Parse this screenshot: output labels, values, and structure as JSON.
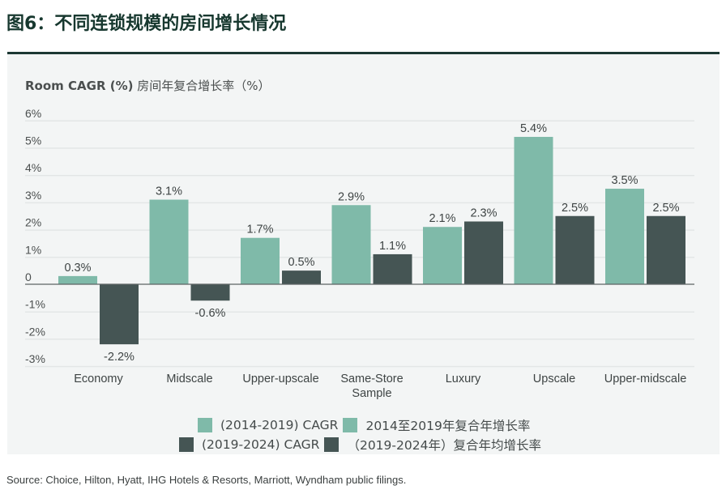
{
  "figure": {
    "title": "图6：不同连锁规模的房间增长情况",
    "source": "Source: Choice, Hilton, Hyatt, IHG Hotels & Resorts, Marriott, Wyndham public filings."
  },
  "colors": {
    "series_2014_2019": "#7fbaa9",
    "series_2019_2024": "#455554",
    "title": "#17382f",
    "panel_bg": "#f3f5f5"
  },
  "chart_data": {
    "type": "bar",
    "title": "",
    "ylabel_en": "Room CAGR (%)",
    "ylabel_cn": "房间年复合增长率（%）",
    "xlabel": "",
    "ylim": [
      -3,
      6
    ],
    "yticks": [
      6,
      5,
      4,
      3,
      2,
      1,
      0,
      -1,
      -2,
      -3
    ],
    "ytick_labels": [
      "6%",
      "5%",
      "4%",
      "3%",
      "2%",
      "1%",
      "0",
      "-1%",
      "-2%",
      "-3%"
    ],
    "grid": true,
    "categories": [
      "Economy",
      "Midscale",
      "Upper-upscale",
      "Same-Store Sample",
      "Luxury",
      "Upscale",
      "Upper-midscale"
    ],
    "category_lines": [
      [
        "Economy"
      ],
      [
        "Midscale"
      ],
      [
        "Upper-upscale"
      ],
      [
        "Same-Store",
        "Sample"
      ],
      [
        "Luxury"
      ],
      [
        "Upscale"
      ],
      [
        "Upper-midscale"
      ]
    ],
    "series": [
      {
        "name": "(2014-2019) CAGR",
        "name_cn": "2014至2019年复合年增长率",
        "values": [
          0.3,
          3.1,
          1.7,
          2.9,
          2.1,
          5.4,
          3.5
        ],
        "labels": [
          "0.3%",
          "3.1%",
          "1.7%",
          "2.9%",
          "2.1%",
          "5.4%",
          "3.5%"
        ]
      },
      {
        "name": "(2019-2024) CAGR",
        "name_cn": "（2019-2024年）复合年均增长率",
        "values": [
          -2.2,
          -0.6,
          0.5,
          1.1,
          2.3,
          2.5,
          2.5
        ],
        "labels": [
          "-2.2%",
          "-0.6%",
          "0.5%",
          "1.1%",
          "2.3%",
          "2.5%",
          "2.5%"
        ]
      }
    ],
    "legend_position": "bottom-center"
  }
}
